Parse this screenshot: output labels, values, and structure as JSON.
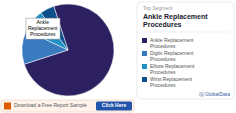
{
  "chart_data": {
    "type": "pie",
    "title": "Ankle Replacement\nProcedures",
    "subtitle": "Top Segment",
    "categories": [
      "Ankle Replacement\nProcedures",
      "Digits Replacement\nProcedures",
      "Elbow Replacement\nProcedures",
      "Wrist Replacement\nProcedures"
    ],
    "values": [
      75,
      12,
      8,
      5
    ],
    "colors": [
      "#2d2060",
      "#3a7abf",
      "#1e90c3",
      "#0d4f8b"
    ],
    "legend": "right",
    "annotations": [
      "Ankle\nReplacement\nProcedures",
      "Download a Free Report Sample",
      "Click Here",
      "Ⓖ GlobalData"
    ]
  }
}
